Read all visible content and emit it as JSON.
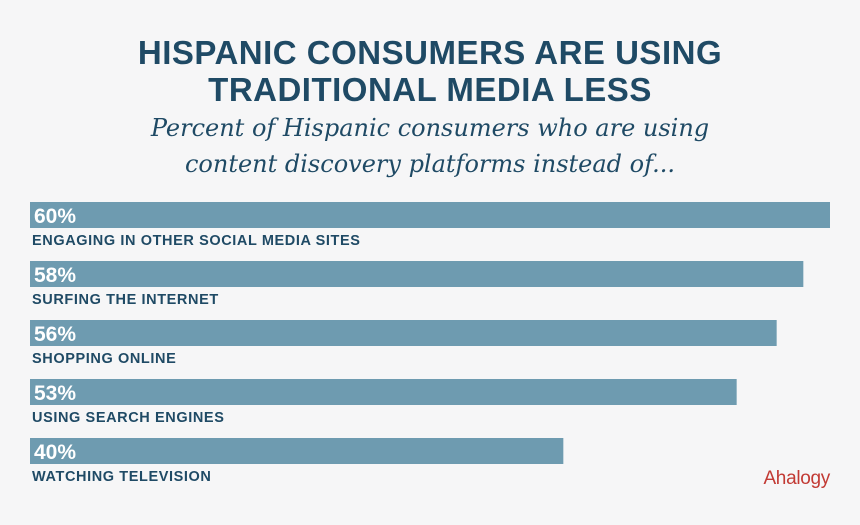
{
  "header": {
    "title_line1": "HISPANIC CONSUMERS ARE USING",
    "title_line2": "TRADITIONAL MEDIA LESS",
    "subtitle_line1": "Percent of Hispanic consumers who are using",
    "subtitle_line2": "content discovery platforms instead of..."
  },
  "chart_data": {
    "type": "bar",
    "orientation": "horizontal",
    "categories": [
      "ENGAGING IN OTHER SOCIAL MEDIA SITES",
      "SURFING THE INTERNET",
      "SHOPPING ONLINE",
      "USING SEARCH ENGINES",
      "WATCHING TELEVISION"
    ],
    "values": [
      60,
      58,
      56,
      53,
      40
    ],
    "value_labels": [
      "60%",
      "58%",
      "56%",
      "53%",
      "40%"
    ],
    "unit": "%",
    "xlim": [
      0,
      60
    ],
    "grid": false,
    "legend": "none",
    "bar_color": "#6e9bb0",
    "label_color": "#1f4a65"
  },
  "brand": {
    "logo_text": "Ahalogy",
    "logo_color": "#c23a34"
  },
  "colors": {
    "background": "#f6f6f7",
    "heading": "#1f4a65"
  }
}
